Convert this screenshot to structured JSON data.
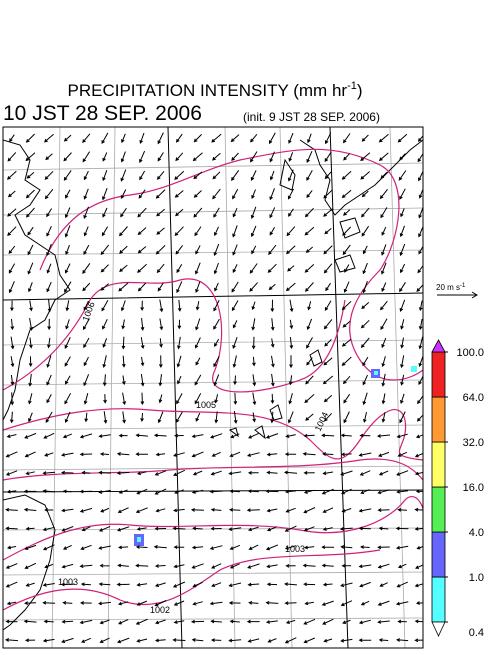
{
  "header": {
    "title": "PRECIPITATION INTENSITY (mm hr",
    "title_superscript": "-1",
    "title_close": ")",
    "valid_time": "10 JST 28 SEP. 2006",
    "init_time": "(init. 9 JST 28 SEP. 2006)"
  },
  "vector_scale": {
    "label": "20 m s",
    "superscript": "-1"
  },
  "colorbar": {
    "ticks": [
      {
        "value": 0.4,
        "label": "0.4"
      },
      {
        "value": 1,
        "label": "1.0"
      },
      {
        "value": 4,
        "label": "4.0"
      },
      {
        "value": 16,
        "label": "16.0"
      },
      {
        "value": 32,
        "label": "32.0"
      },
      {
        "value": 64,
        "label": "64.0"
      },
      {
        "value": 100,
        "label": "100.0"
      }
    ],
    "colors": [
      "#55ffff",
      "#6666ff",
      "#55ee55",
      "#ffff66",
      "#ff9933",
      "#ee2222"
    ],
    "over_color": "#cc33ff",
    "under_color": "#ffffff"
  },
  "isobar_labels": [
    "1006",
    "1005",
    "1004",
    "1003",
    "1003",
    "1002"
  ]
}
